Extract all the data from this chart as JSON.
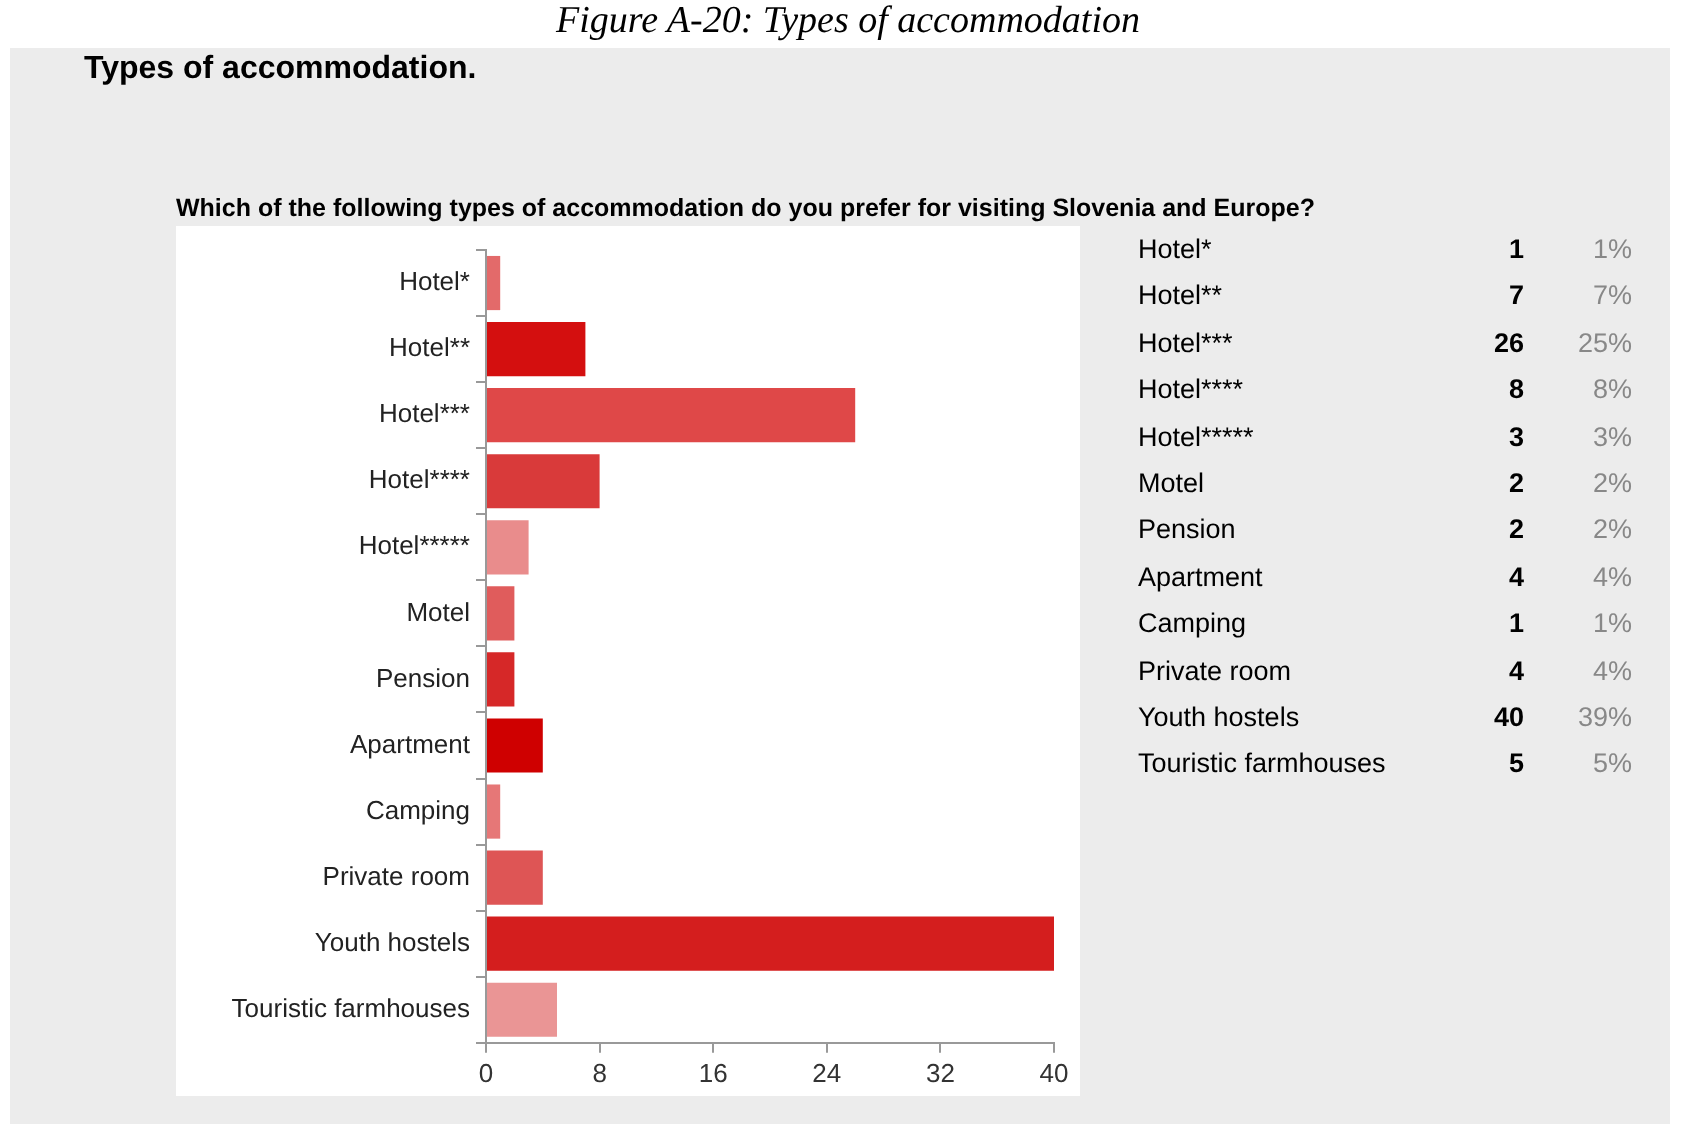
{
  "chart_data": [
    {
      "type": "bar",
      "orientation": "horizontal",
      "title": "Types of accommodation.",
      "subtitle": "Which of the following types of accommodation do you prefer for visiting Slovenia and Europe?",
      "categories": [
        "Hotel*",
        "Hotel**",
        "Hotel***",
        "Hotel****",
        "Hotel*****",
        "Motel",
        "Pension",
        "Apartment",
        "Camping",
        "Private room",
        "Youth hostels",
        "Touristic farmhouses"
      ],
      "values": [
        1,
        7,
        26,
        8,
        3,
        2,
        2,
        4,
        1,
        4,
        40,
        5
      ],
      "colors": [
        "#e36a6a",
        "#d40f0f",
        "#df4848",
        "#d93a3a",
        "#e98c8c",
        "#e05c5c",
        "#d62828",
        "#cf0000",
        "#e67777",
        "#de5555",
        "#d41e1e",
        "#ea9595"
      ],
      "xlim": [
        0,
        40
      ],
      "xticks": [
        0,
        8,
        16,
        24,
        32,
        40
      ],
      "grid": false,
      "legend": false,
      "annotations": [
        "Figure A-20: Types of accommodation"
      ]
    },
    {
      "type": "other",
      "annotations": [
        "Hotel*",
        "1",
        "1%",
        "Hotel**",
        "7",
        "7%",
        "Hotel***",
        "26",
        "25%",
        "Hotel****",
        "8",
        "8%",
        "Hotel*****",
        "3",
        "3%",
        "Motel",
        "2",
        "2%",
        "Pension",
        "2",
        "2%",
        "Apartment",
        "4",
        "4%",
        "Camping",
        "1",
        "1%",
        "Private room",
        "4",
        "4%",
        "Youth hostels",
        "40",
        "39%",
        "Touristic farmhouses",
        "5",
        "5%"
      ]
    }
  ]
}
